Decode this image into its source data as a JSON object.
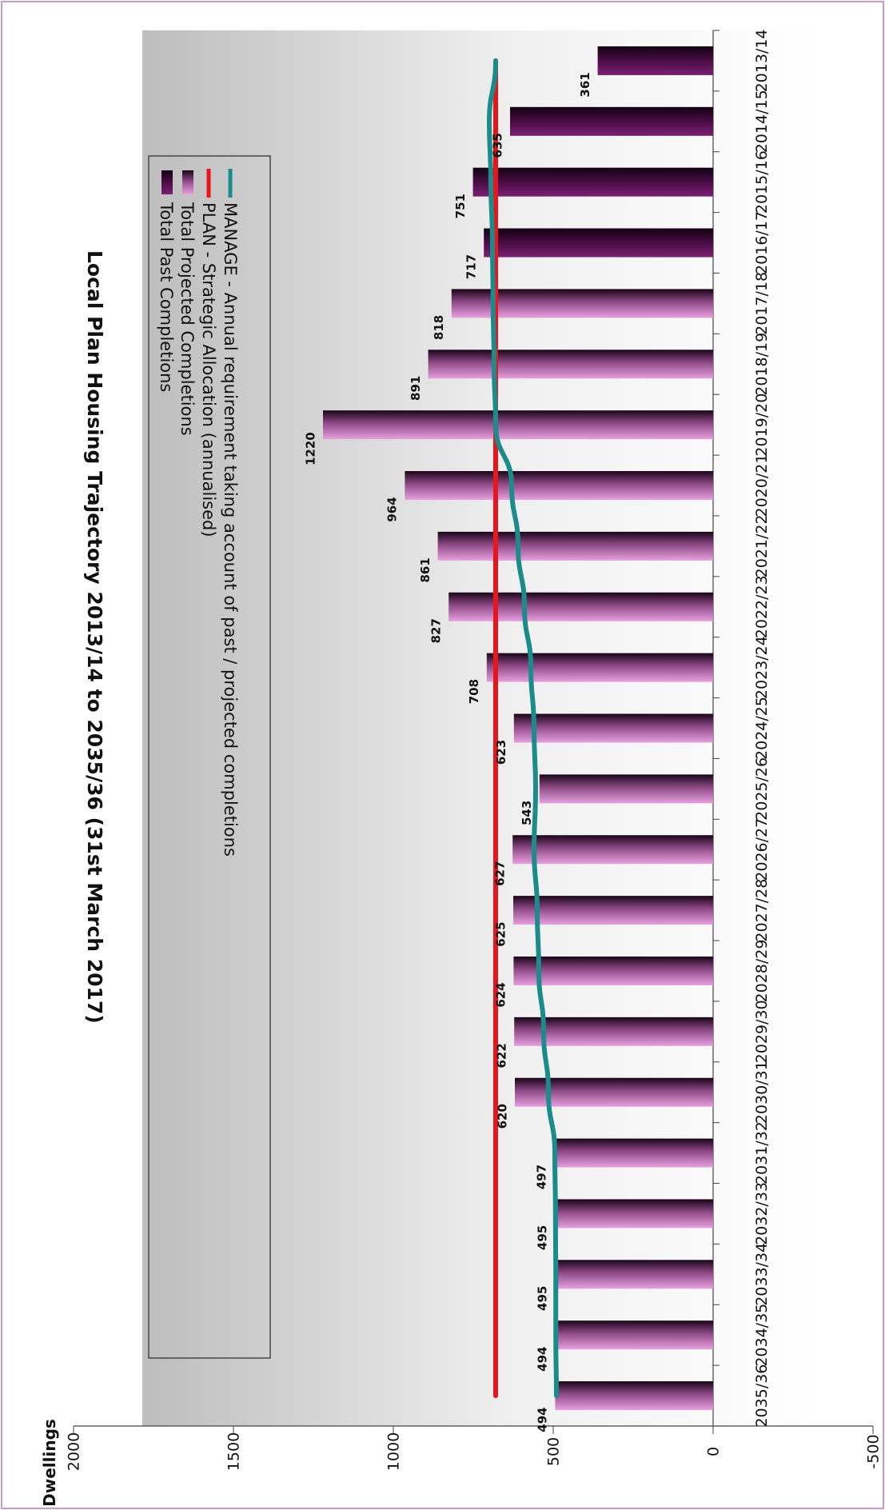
{
  "chart_data": {
    "type": "bar",
    "title": "Local Plan Housing Trajectory 2013/14 to 2035/36 (31st March 2017)",
    "xlabel": "",
    "ylabel": "Dwellings",
    "ylim": [
      -500,
      2000
    ],
    "yticks": [
      2000,
      1500,
      1000,
      500,
      0,
      -500
    ],
    "categories": [
      "2013/14",
      "2014/15",
      "2015/16",
      "2016/17",
      "2017/18",
      "2018/19",
      "2019/20",
      "2020/21",
      "2021/22",
      "2022/23",
      "2023/24",
      "2024/25",
      "2025/26",
      "2026/27",
      "2027/28",
      "2028/29",
      "2029/30",
      "2030/31",
      "2031/32",
      "2032/33",
      "2033/34",
      "2034/35",
      "2035/36"
    ],
    "legend_position": "top-left, inside plot",
    "gridlines": false,
    "series": [
      {
        "name": "Total Past Completions",
        "kind": "bar",
        "color": "#3b0a38",
        "values": [
          361,
          635,
          751,
          717,
          null,
          null,
          null,
          null,
          null,
          null,
          null,
          null,
          null,
          null,
          null,
          null,
          null,
          null,
          null,
          null,
          null,
          null,
          null
        ]
      },
      {
        "name": "Total Projected Completions",
        "kind": "bar",
        "color": "#d98fcf",
        "values": [
          null,
          null,
          null,
          null,
          818,
          891,
          1220,
          964,
          861,
          827,
          708,
          623,
          543,
          627,
          625,
          624,
          622,
          620,
          497,
          495,
          495,
          494,
          494
        ]
      },
      {
        "name": "PLAN - Strategic Allocation (annualised)",
        "kind": "line",
        "color": "#e8151b",
        "values": [
          680,
          680,
          680,
          680,
          680,
          680,
          680,
          680,
          680,
          680,
          680,
          680,
          680,
          680,
          680,
          680,
          680,
          680,
          680,
          680,
          680,
          680,
          680
        ]
      },
      {
        "name": "MANAGE - Annual requirement taking account of past / projected completions",
        "kind": "line",
        "color": "#1b8c8a",
        "values": [
          680,
          700,
          695,
          690,
          688,
          685,
          680,
          630,
          610,
          590,
          570,
          560,
          555,
          560,
          550,
          545,
          530,
          515,
          495,
          493,
          492,
          492,
          490
        ]
      }
    ],
    "data_labels": [
      "361",
      "635",
      "751",
      "717",
      "818",
      "891",
      "1220",
      "964",
      "861",
      "827",
      "708",
      "623",
      "543",
      "627",
      "625",
      "624",
      "622",
      "620",
      "497",
      "495",
      "495",
      "494",
      "494"
    ]
  }
}
